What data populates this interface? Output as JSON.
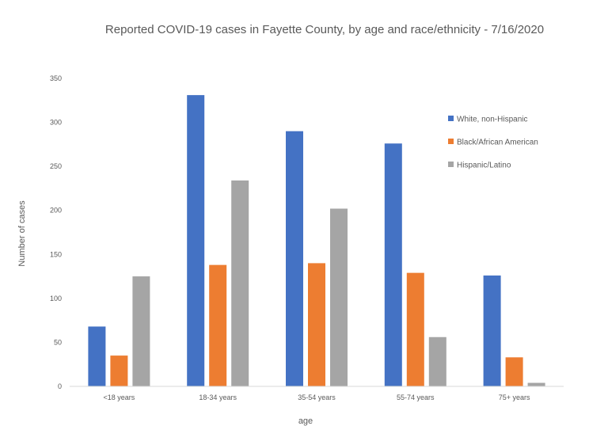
{
  "chart_data": {
    "type": "bar",
    "title": "Reported COVID-19 cases in Fayette County, by age and race/ethnicity - 7/16/2020",
    "xlabel": "age",
    "ylabel": "Number of cases",
    "categories": [
      "<18 years",
      "18-34 years",
      "35-54 years",
      "55-74 years",
      "75+ years"
    ],
    "series": [
      {
        "name": "White, non-Hispanic",
        "color": "#4472C4",
        "values": [
          68,
          331,
          290,
          276,
          126
        ]
      },
      {
        "name": "Black/African American",
        "color": "#ED7D31",
        "values": [
          35,
          138,
          140,
          129,
          33
        ]
      },
      {
        "name": "Hispanic/Latino",
        "color": "#A5A5A5",
        "values": [
          125,
          234,
          202,
          56,
          4
        ]
      }
    ],
    "ylim": [
      0,
      350
    ],
    "yticks": [
      0,
      50,
      100,
      150,
      200,
      250,
      300,
      350
    ],
    "grid": false,
    "legend_position": "right"
  }
}
